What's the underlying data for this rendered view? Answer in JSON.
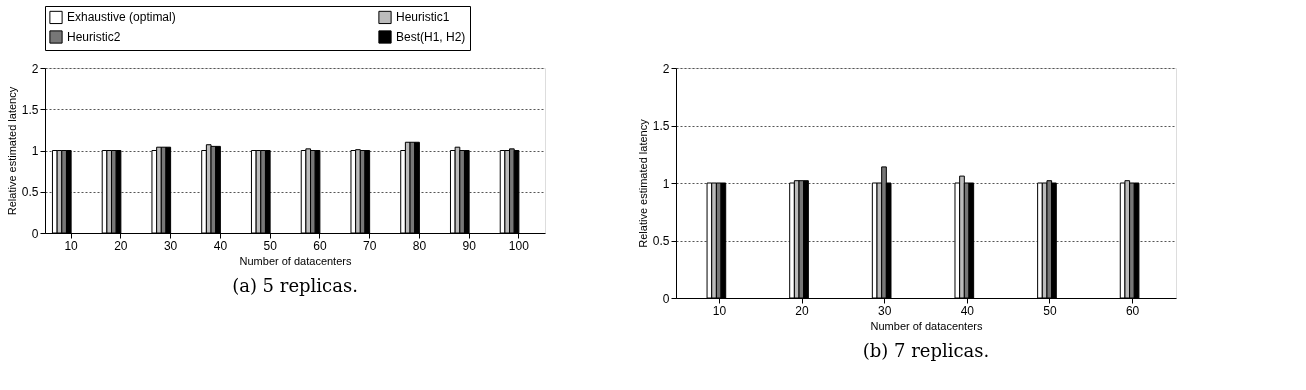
{
  "chart_data": [
    {
      "type": "bar",
      "categories": [
        "10",
        "20",
        "30",
        "40",
        "50",
        "60",
        "70",
        "80",
        "90",
        "100"
      ],
      "xlabel": "Number of datacenters",
      "ylabel": "Relative estimated latency",
      "ylim": [
        0,
        2
      ],
      "yticks": [
        0,
        0.5,
        1,
        1.5,
        2
      ],
      "grid": "y",
      "legend": "top",
      "annotations": [
        "(a) 5 replicas."
      ],
      "series": [
        {
          "name": "Exhaustive (optimal)",
          "color": "#ffffff",
          "values": [
            1,
            1,
            1,
            1,
            1,
            1,
            1,
            1,
            1,
            1
          ]
        },
        {
          "name": "Heuristic1",
          "color": "#bbbbbb",
          "values": [
            1,
            1,
            1.04,
            1.07,
            1,
            1.02,
            1.01,
            1.1,
            1.04,
            1
          ]
        },
        {
          "name": "Heuristic2",
          "color": "#777777",
          "values": [
            1,
            1,
            1.04,
            1.05,
            1,
            1,
            1,
            1.1,
            1,
            1.02
          ]
        },
        {
          "name": "Best(H1, H2)",
          "color": "#000000",
          "values": [
            1,
            1,
            1.04,
            1.05,
            1,
            1,
            1,
            1.1,
            1,
            1
          ]
        }
      ]
    },
    {
      "type": "bar",
      "categories": [
        "10",
        "20",
        "30",
        "40",
        "50",
        "60"
      ],
      "xlabel": "Number of datacenters",
      "ylabel": "Relative estimated latency",
      "ylim": [
        0,
        2
      ],
      "yticks": [
        0,
        0.5,
        1,
        1.5,
        2
      ],
      "grid": "y",
      "annotations": [
        "(b) 7 replicas."
      ],
      "series": [
        {
          "color": "#ffffff",
          "values": [
            1,
            1,
            1,
            1,
            1,
            1
          ]
        },
        {
          "color": "#bbbbbb",
          "values": [
            1,
            1.02,
            1,
            1.06,
            1,
            1.02
          ]
        },
        {
          "color": "#777777",
          "values": [
            1,
            1.02,
            1.14,
            1,
            1.02,
            1
          ]
        },
        {
          "color": "#000000",
          "values": [
            1,
            1.02,
            1,
            1,
            1,
            1
          ]
        }
      ]
    }
  ]
}
